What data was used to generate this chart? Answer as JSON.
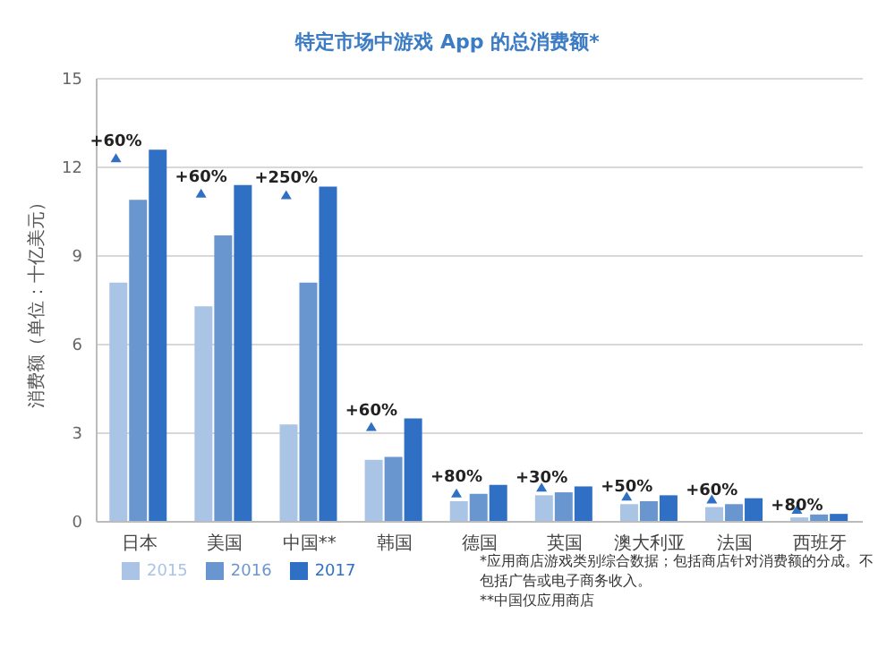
{
  "chart_data": {
    "type": "bar",
    "title": "特定市场中游戏 App 的总消费额*",
    "ylabel": "消费额（单位：十亿美元）",
    "categories": [
      "日本",
      "美国",
      "中国**",
      "韩国",
      "德国",
      "英国",
      "澳大利亚",
      "法国",
      "西班牙"
    ],
    "series": [
      {
        "name": "2015",
        "color": "#a9c4e4",
        "values": [
          8.1,
          7.3,
          3.3,
          2.1,
          0.7,
          0.9,
          0.6,
          0.5,
          0.15
        ]
      },
      {
        "name": "2016",
        "color": "#6a96cf",
        "values": [
          10.9,
          9.7,
          8.1,
          2.2,
          0.95,
          1.0,
          0.7,
          0.6,
          0.25
        ]
      },
      {
        "name": "2017",
        "color": "#2f6fc4",
        "values": [
          12.6,
          11.4,
          11.35,
          3.5,
          1.25,
          1.2,
          0.9,
          0.8,
          0.27
        ]
      }
    ],
    "ylim": [
      0,
      15
    ],
    "yticks": [
      0,
      3,
      6,
      9,
      12,
      15
    ],
    "grid": "y",
    "legend": "bottom left",
    "annotations": [
      "+60%",
      "+60%",
      "+250%",
      "+60%",
      "+80%",
      "+30%",
      "+50%",
      "+60%",
      "+80%",
      "*应用商店游戏类别综合数据；包括商店针对消费额的分成。不包括广告或电子商务收入。",
      "**中国仅应用商店"
    ]
  }
}
